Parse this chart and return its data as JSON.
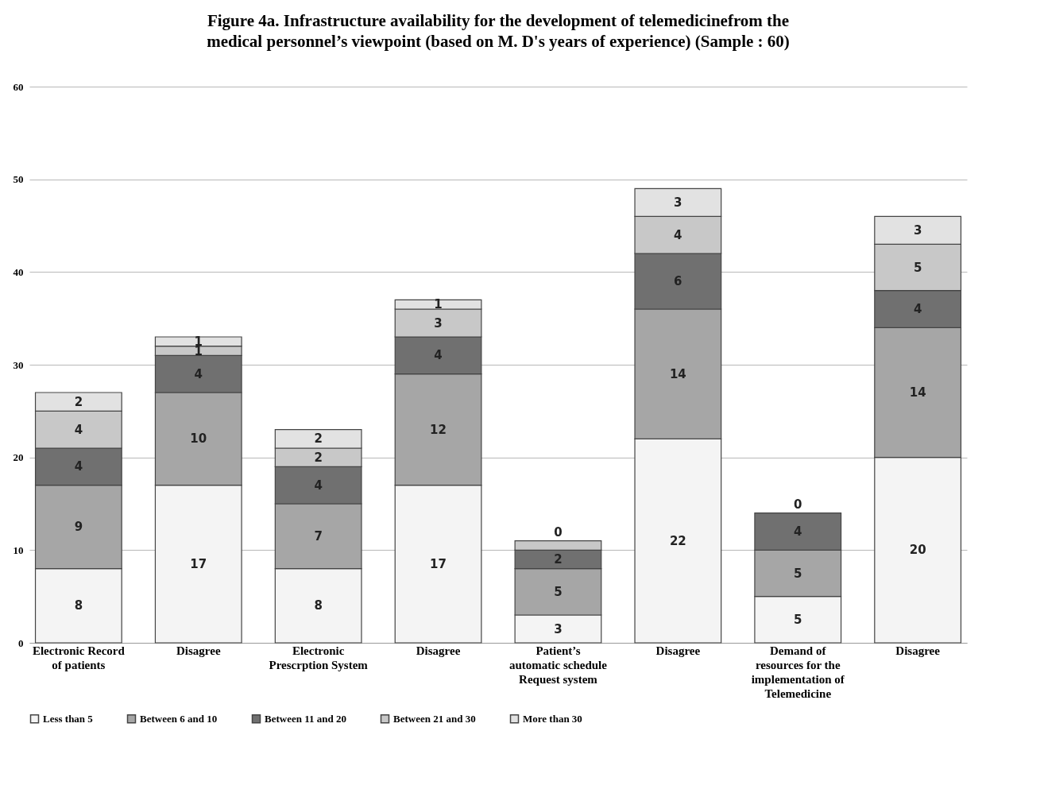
{
  "chart_data": {
    "type": "bar",
    "stacked": true,
    "title": "Figure 4a. Infrastructure availability for the development of telemedicinefrom the medical personnel’s viewpoint (based on M. D's years of experience) (Sample : 60)",
    "categories": [
      "Electronic Record of patients",
      "Disagree",
      "Electronic Prescrption System",
      "Disagree",
      "Patient’s automatic schedule Request system",
      "Disagree",
      "Demand of resources for the implementation of Telemedicine",
      "Disagree"
    ],
    "series": [
      {
        "name": "Less than 5",
        "color": "#f4f4f4",
        "values": [
          8,
          17,
          8,
          17,
          3,
          22,
          5,
          20
        ],
        "value_labels": [
          "8",
          "17",
          "8",
          "17",
          "3",
          "22",
          "5",
          "20"
        ]
      },
      {
        "name": "Between 6 and 10",
        "color": "#a6a6a6",
        "values": [
          9,
          10,
          7,
          12,
          5,
          14,
          5,
          14
        ],
        "value_labels": [
          "9",
          "10",
          "7",
          "12",
          "5",
          "14",
          "5",
          "14"
        ]
      },
      {
        "name": "Between 11 and 20",
        "color": "#707070",
        "values": [
          4,
          4,
          4,
          4,
          2,
          6,
          4,
          4
        ],
        "value_labels": [
          "4",
          "4",
          "4",
          "4",
          "2",
          "6",
          "4",
          "4"
        ]
      },
      {
        "name": "Between 21 and 30",
        "color": "#c8c8c8",
        "values": [
          4,
          1,
          2,
          3,
          1,
          4,
          0,
          5
        ],
        "value_labels": [
          "4",
          "1",
          "2",
          "3",
          null,
          "4",
          null,
          "5"
        ]
      },
      {
        "name": "More than 30",
        "color": "#e2e2e2",
        "values": [
          2,
          1,
          2,
          1,
          0,
          3,
          0,
          3
        ],
        "value_labels": [
          "2",
          "1",
          "2",
          "1",
          "0",
          "3",
          "0",
          "3"
        ]
      }
    ],
    "ylim": [
      0,
      60
    ],
    "yticks": [
      0,
      10,
      20,
      30,
      40,
      50,
      60
    ],
    "grid": "y",
    "legend": "bottom"
  }
}
